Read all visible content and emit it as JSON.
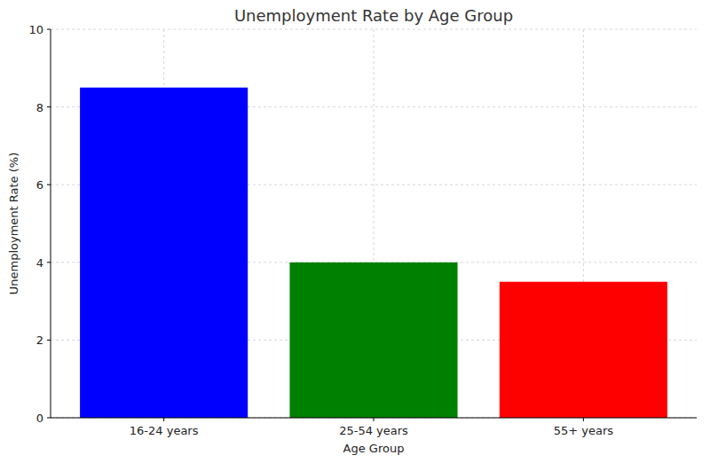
{
  "chart_data": {
    "type": "bar",
    "title": "Unemployment Rate by Age Group",
    "x_label": "Age Group",
    "y_label": "Unemployment Rate (%)",
    "categories": [
      "16-24 years",
      "25-54 years",
      "55+ years"
    ],
    "values": [
      8.5,
      4,
      3.5
    ],
    "colors": [
      "#0000ff",
      "#008000",
      "#ff0000"
    ],
    "ylim": [
      0,
      10
    ],
    "yticks": [
      0,
      2,
      4,
      6,
      8,
      10
    ],
    "grid": true
  }
}
